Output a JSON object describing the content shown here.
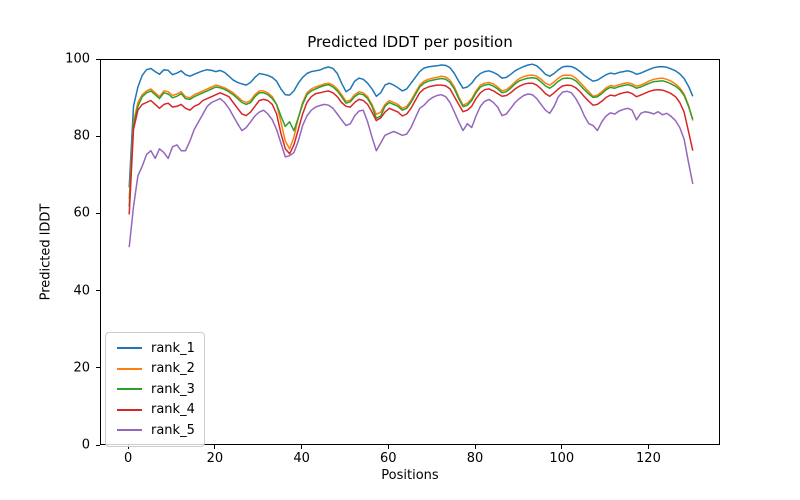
{
  "chart_data": {
    "type": "line",
    "title": "Predicted lDDT per position",
    "xlabel": "Positions",
    "ylabel": "Predicted lDDT",
    "xlim": [
      -6.5,
      136.5
    ],
    "ylim": [
      0,
      100
    ],
    "xticks": [
      0,
      20,
      40,
      60,
      80,
      100,
      120
    ],
    "yticks": [
      0,
      20,
      40,
      60,
      80,
      100
    ],
    "grid": false,
    "legend_position": "lower left",
    "x_start": 0,
    "x_step": 1,
    "series": [
      {
        "name": "rank_1",
        "color": "#1f77b4",
        "values": [
          67,
          88,
          93,
          96,
          97.5,
          97.8,
          97,
          96.3,
          97.5,
          97.3,
          96.2,
          96.6,
          97.2,
          96.2,
          95.8,
          96.3,
          96.8,
          97.2,
          97.5,
          97.3,
          97,
          97.3,
          96.8,
          95.8,
          94.8,
          94.2,
          93.8,
          93.5,
          94.2,
          95.5,
          96.5,
          96.3,
          96,
          95.5,
          94.5,
          92.5,
          91,
          90.9,
          92,
          94,
          95.5,
          96.5,
          97,
          97.2,
          97.4,
          97.9,
          98.2,
          97.8,
          96.5,
          94,
          91.8,
          92.5,
          94.5,
          95.3,
          95,
          94,
          92.5,
          90.6,
          91.5,
          93.5,
          94,
          93.5,
          92.8,
          92,
          92.5,
          94,
          95.5,
          97,
          97.9,
          98.2,
          98.4,
          98.5,
          98.7,
          98.6,
          98,
          96.5,
          94.5,
          92.7,
          93,
          94,
          95.5,
          96.5,
          97,
          97.2,
          96.8,
          96.2,
          95.3,
          95.5,
          96.3,
          97.2,
          97.8,
          98.3,
          98.7,
          98.9,
          98.5,
          97.5,
          96.3,
          95.8,
          96.5,
          97.5,
          98.2,
          98.4,
          98.3,
          97.8,
          97,
          96,
          95.2,
          94.5,
          94.8,
          95.5,
          96.2,
          96.6,
          96.4,
          96.8,
          97,
          97.2,
          96.9,
          96.3,
          96.6,
          97.1,
          97.6,
          98,
          98.2,
          98.3,
          98.1,
          97.7,
          97.2,
          96.4,
          95.2,
          93.2,
          90.6
        ]
      },
      {
        "name": "rank_2",
        "color": "#ff7f0e",
        "values": [
          64,
          84,
          89,
          91,
          92,
          92.5,
          91.5,
          90.5,
          92,
          91.8,
          90.8,
          91.2,
          91.8,
          90.5,
          90.2,
          91,
          91.5,
          92,
          92.5,
          93,
          93.5,
          93.2,
          92.8,
          92.2,
          91.5,
          90.5,
          89.5,
          89,
          89.5,
          91,
          92,
          92,
          91.5,
          90.5,
          88.5,
          84,
          79,
          77,
          80,
          85,
          89,
          91.5,
          92.5,
          93,
          93.4,
          93.8,
          94,
          93.5,
          92.5,
          91,
          89.3,
          89.6,
          91,
          91.8,
          91.5,
          90.5,
          88.5,
          85.9,
          86.5,
          88.5,
          89.5,
          89,
          88.5,
          87.5,
          88,
          89.5,
          91.5,
          93.5,
          94.5,
          95,
          95.3,
          95.5,
          95.8,
          95.6,
          94.8,
          93,
          90.5,
          88.3,
          88.8,
          90,
          92,
          93.5,
          94,
          94.2,
          93.8,
          93,
          92,
          92.3,
          93.2,
          94.3,
          95.2,
          95.7,
          96,
          96.1,
          95.8,
          95,
          94,
          93.5,
          94.3,
          95.3,
          96,
          96.1,
          96,
          95.3,
          94.2,
          93,
          91.8,
          90.6,
          90.9,
          91.8,
          92.8,
          93.4,
          93.2,
          93.6,
          93.9,
          94.1,
          93.8,
          93.2,
          93.5,
          94,
          94.6,
          95,
          95.2,
          95.3,
          95,
          94.5,
          93.8,
          92.8,
          91.2,
          88.3,
          84.3
        ]
      },
      {
        "name": "rank_3",
        "color": "#2ca02c",
        "values": [
          62,
          83,
          88,
          90.5,
          91.5,
          92,
          91,
          90,
          91.5,
          91.2,
          90.2,
          90.6,
          91.3,
          90,
          89.8,
          90.5,
          91,
          91.5,
          92,
          92.5,
          93,
          92.8,
          92.4,
          91.8,
          91,
          90,
          89,
          88.5,
          89,
          90.5,
          91.5,
          91.5,
          91,
          90,
          88.5,
          85.5,
          82.8,
          84,
          81.7,
          85,
          88.5,
          91,
          92,
          92.5,
          93,
          93.4,
          93.6,
          93,
          92,
          90.5,
          88.8,
          89.2,
          90.5,
          91.3,
          91,
          90,
          88,
          84.9,
          85.5,
          88,
          89,
          88.5,
          88,
          87,
          87.5,
          89,
          91,
          93,
          94,
          94.5,
          94.8,
          95,
          95.2,
          95,
          94.2,
          92.5,
          90,
          87.9,
          88.3,
          89.5,
          91.5,
          93,
          93.5,
          93.7,
          93.2,
          92.5,
          91.5,
          91.8,
          92.7,
          93.8,
          94.6,
          95,
          95.3,
          95.4,
          95.2,
          94.3,
          93.3,
          92.7,
          93.5,
          94.5,
          95.2,
          95.3,
          95.2,
          94.6,
          93.5,
          92.3,
          91.2,
          90.3,
          90.5,
          91.3,
          92.3,
          92.9,
          92.7,
          93.1,
          93.4,
          93.6,
          93.3,
          92.7,
          93,
          93.5,
          94,
          94.4,
          94.5,
          94.6,
          94.3,
          93.8,
          93.2,
          92.3,
          90.8,
          88,
          84.6
        ]
      },
      {
        "name": "rank_4",
        "color": "#d62728",
        "values": [
          60,
          82,
          87,
          88.5,
          89,
          89.5,
          88.5,
          87.5,
          88.5,
          88.8,
          87.8,
          88,
          88.5,
          87.5,
          87,
          88,
          88.5,
          89.5,
          90,
          90.5,
          91,
          91.5,
          91,
          90.5,
          89,
          87.5,
          86,
          85.6,
          86.5,
          88,
          89.5,
          89.8,
          89.5,
          88.5,
          86,
          81,
          77,
          75.7,
          78,
          82,
          86,
          89,
          90.5,
          91.3,
          91.5,
          91.8,
          92,
          91.5,
          90.5,
          89,
          88,
          87.8,
          89,
          89.8,
          89.5,
          88.5,
          86.5,
          84.3,
          85,
          86.5,
          87.5,
          87,
          86.5,
          85.5,
          86,
          87.5,
          89.5,
          91.5,
          92.5,
          93,
          93.3,
          93.5,
          93.5,
          93.3,
          92.5,
          90.5,
          88.5,
          86.6,
          87,
          88,
          90,
          91.5,
          92.3,
          92.5,
          92,
          91.3,
          90.6,
          90.8,
          91.5,
          92.5,
          93.2,
          93.7,
          94,
          94,
          93.5,
          92.5,
          91.3,
          90.6,
          91.5,
          92.5,
          93.3,
          93.5,
          93.4,
          92.8,
          91.8,
          90.5,
          89.3,
          88.3,
          88.5,
          89.3,
          90.3,
          90.9,
          90.7,
          91.2,
          91.5,
          91.7,
          91.3,
          90.5,
          90.9,
          91.4,
          91.9,
          92.2,
          92.3,
          92.2,
          91.8,
          91.3,
          90.5,
          89,
          86.5,
          81.5,
          76.5
        ]
      },
      {
        "name": "rank_5",
        "color": "#9467bd",
        "values": [
          51.5,
          62,
          70,
          72.5,
          75.5,
          76.5,
          74.5,
          77,
          76,
          74.5,
          77.5,
          78,
          76.5,
          76.5,
          79,
          82,
          84,
          86,
          88,
          89,
          89.5,
          90,
          89,
          87.5,
          85.5,
          83.5,
          81.7,
          82.5,
          84,
          85.5,
          86.5,
          87,
          86,
          84.5,
          82,
          78.5,
          74.9,
          75.2,
          76,
          79,
          83,
          85.5,
          87,
          87.8,
          88.2,
          88.5,
          88.3,
          87.5,
          86,
          84.5,
          83,
          83.5,
          85.5,
          86.8,
          87,
          84,
          80,
          76.5,
          78.5,
          80.5,
          81,
          81.5,
          81,
          80.5,
          80.8,
          82.5,
          85,
          87.5,
          88.3,
          89.5,
          90.3,
          90.8,
          91,
          90.5,
          89,
          86.5,
          84,
          81.7,
          83.5,
          82.5,
          85.5,
          88,
          89.3,
          89.8,
          89,
          87.8,
          85.6,
          86,
          87.5,
          89,
          90,
          90.8,
          91.2,
          91,
          90,
          88.5,
          87,
          86.2,
          88,
          90.5,
          91.7,
          91.9,
          91.5,
          90,
          88,
          85.5,
          83.5,
          83,
          81.7,
          84,
          85.5,
          86.3,
          86,
          86.8,
          87.2,
          87.5,
          87,
          84.5,
          86.2,
          86.6,
          86.4,
          86,
          86.6,
          85.8,
          86.2,
          85.4,
          84.3,
          82.5,
          79.5,
          73.5,
          67.9
        ]
      }
    ]
  }
}
